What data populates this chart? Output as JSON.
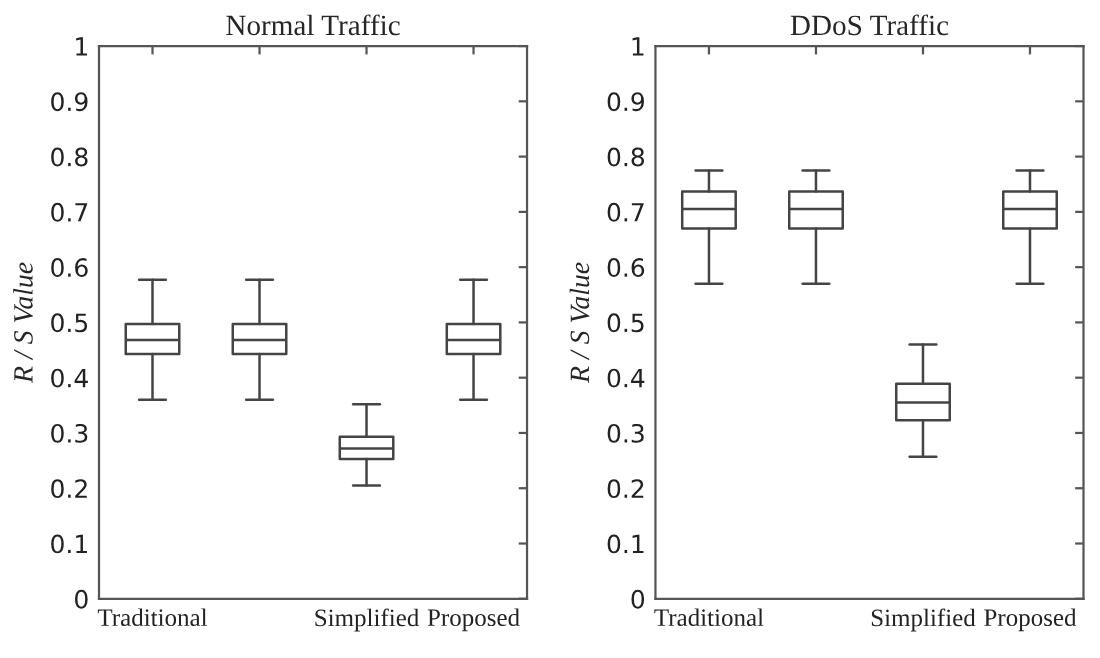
{
  "chart_data": [
    {
      "type": "box",
      "title": "Normal Traffic",
      "ylabel": "R / S Value",
      "categories": [
        "Traditional",
        null,
        "Simplified",
        "Proposed"
      ],
      "ylim": [
        0,
        1
      ],
      "yticks": [
        0,
        0.1,
        0.2,
        0.3,
        0.4,
        0.5,
        0.6,
        0.7,
        0.8,
        0.9,
        1
      ],
      "grid": false,
      "boxes": [
        {
          "low": 0.36,
          "q1": 0.443,
          "median": 0.468,
          "q3": 0.497,
          "high": 0.577
        },
        {
          "low": 0.36,
          "q1": 0.443,
          "median": 0.468,
          "q3": 0.497,
          "high": 0.577
        },
        {
          "low": 0.205,
          "q1": 0.253,
          "median": 0.272,
          "q3": 0.293,
          "high": 0.352
        },
        {
          "low": 0.36,
          "q1": 0.443,
          "median": 0.468,
          "q3": 0.497,
          "high": 0.577
        }
      ]
    },
    {
      "type": "box",
      "title": "DDoS Traffic",
      "ylabel": "R / S Value",
      "categories": [
        "Traditional",
        null,
        "Simplified",
        "Proposed"
      ],
      "ylim": [
        0,
        1
      ],
      "yticks": [
        0,
        0.1,
        0.2,
        0.3,
        0.4,
        0.5,
        0.6,
        0.7,
        0.8,
        0.9,
        1
      ],
      "grid": false,
      "boxes": [
        {
          "low": 0.57,
          "q1": 0.67,
          "median": 0.705,
          "q3": 0.737,
          "high": 0.775
        },
        {
          "low": 0.57,
          "q1": 0.67,
          "median": 0.705,
          "q3": 0.737,
          "high": 0.775
        },
        {
          "low": 0.257,
          "q1": 0.323,
          "median": 0.355,
          "q3": 0.389,
          "high": 0.46
        },
        {
          "low": 0.57,
          "q1": 0.67,
          "median": 0.705,
          "q3": 0.737,
          "high": 0.775
        }
      ]
    }
  ]
}
